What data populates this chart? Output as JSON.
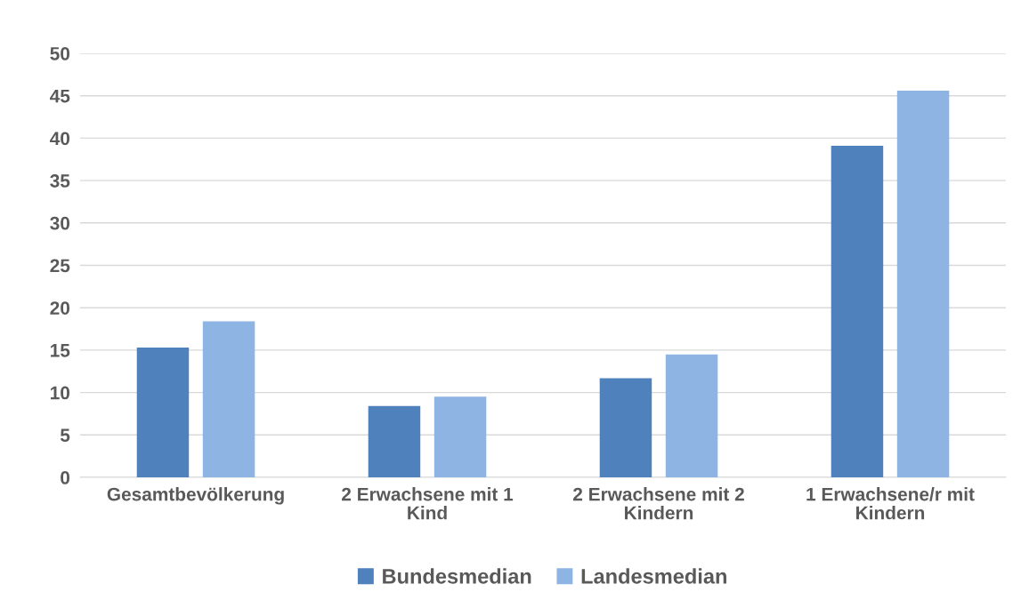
{
  "chart_data": {
    "type": "bar",
    "categories": [
      "Gesamtbevölkerung",
      "2 Erwachsene mit 1 Kind",
      "2 Erwachsene mit 2 Kindern",
      "1 Erwachsene/r mit Kindern"
    ],
    "series": [
      {
        "name": "Bundesmedian",
        "color": "#4f81bd",
        "values": [
          15.3,
          8.4,
          11.7,
          39.1
        ]
      },
      {
        "name": "Landesmedian",
        "color": "#8eb4e3",
        "values": [
          18.4,
          9.5,
          14.5,
          45.6
        ]
      }
    ],
    "ylim": [
      0,
      50
    ],
    "yticks": [
      0,
      5,
      10,
      15,
      20,
      25,
      30,
      35,
      40,
      45,
      50
    ],
    "grid": "y",
    "legend": "bottom"
  }
}
